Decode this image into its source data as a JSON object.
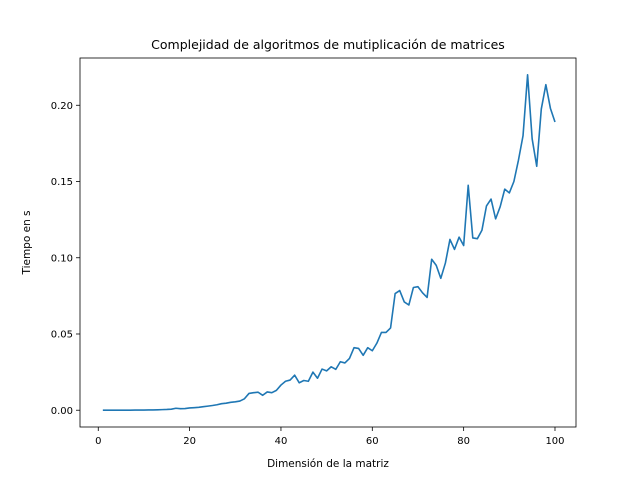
{
  "chart_data": {
    "type": "line",
    "title": "Complejidad de algoritmos de mutiplicación de matrices",
    "xlabel": "Dimensión de la matriz",
    "ylabel": "Tiempo en s",
    "xlim": [
      -4,
      104.6
    ],
    "ylim": [
      -0.011,
      0.231
    ],
    "xticks": [
      0,
      20,
      40,
      60,
      80,
      100
    ],
    "yticks": [
      0.0,
      0.05,
      0.1,
      0.15,
      0.2
    ],
    "xtick_labels": [
      "0",
      "20",
      "40",
      "60",
      "80",
      "100"
    ],
    "ytick_labels": [
      "0.00",
      "0.05",
      "0.10",
      "0.15",
      "0.20"
    ],
    "grid": false,
    "series": [
      {
        "color": "#1f77b4",
        "x": [
          1,
          2,
          3,
          4,
          5,
          6,
          7,
          8,
          9,
          10,
          11,
          12,
          13,
          14,
          15,
          16,
          17,
          18,
          19,
          20,
          21,
          22,
          23,
          24,
          25,
          26,
          27,
          28,
          29,
          30,
          31,
          32,
          33,
          34,
          35,
          36,
          37,
          38,
          39,
          40,
          41,
          42,
          43,
          44,
          45,
          46,
          47,
          48,
          49,
          50,
          51,
          52,
          53,
          54,
          55,
          56,
          57,
          58,
          59,
          60,
          61,
          62,
          63,
          64,
          65,
          66,
          67,
          68,
          69,
          70,
          71,
          72,
          73,
          74,
          75,
          76,
          77,
          78,
          79,
          80,
          81,
          82,
          83,
          84,
          85,
          86,
          87,
          88,
          89,
          90,
          91,
          92,
          93,
          94,
          95,
          96,
          97,
          98,
          99,
          100
        ],
        "y": [
          0.0,
          0.0,
          0.0,
          0.0,
          0.0,
          0.0,
          0.0,
          0.0001,
          0.0001,
          0.0001,
          0.0002,
          0.0002,
          0.0003,
          0.0004,
          0.0005,
          0.0007,
          0.0013,
          0.001,
          0.0011,
          0.0015,
          0.0017,
          0.0019,
          0.0023,
          0.0027,
          0.0031,
          0.0036,
          0.0043,
          0.0046,
          0.0052,
          0.0055,
          0.006,
          0.0075,
          0.011,
          0.0115,
          0.0118,
          0.0098,
          0.012,
          0.0115,
          0.013,
          0.0165,
          0.019,
          0.0198,
          0.023,
          0.018,
          0.0195,
          0.019,
          0.025,
          0.021,
          0.027,
          0.0258,
          0.0285,
          0.0268,
          0.0318,
          0.031,
          0.034,
          0.041,
          0.0405,
          0.036,
          0.041,
          0.039,
          0.044,
          0.051,
          0.051,
          0.054,
          0.0765,
          0.0785,
          0.071,
          0.069,
          0.0805,
          0.081,
          0.077,
          0.074,
          0.099,
          0.095,
          0.0865,
          0.0965,
          0.112,
          0.1055,
          0.1135,
          0.108,
          0.1475,
          0.113,
          0.1125,
          0.118,
          0.134,
          0.1385,
          0.1255,
          0.1335,
          0.145,
          0.1425,
          0.15,
          0.164,
          0.18,
          0.22,
          0.178,
          0.16,
          0.1975,
          0.2135,
          0.198,
          0.189
        ]
      }
    ]
  }
}
